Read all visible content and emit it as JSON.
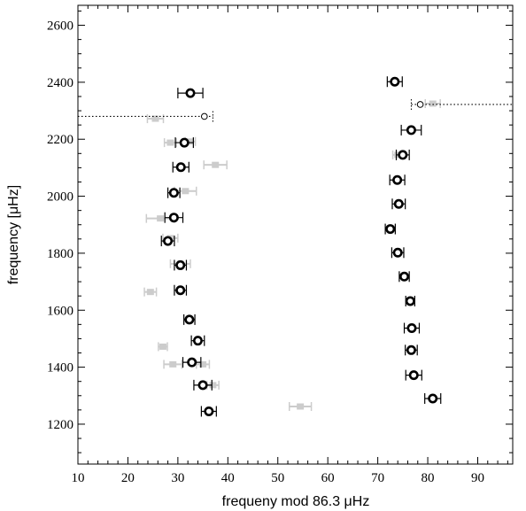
{
  "chart_data": {
    "type": "scatter",
    "xlabel": "frequeny mod 86.3 μHz",
    "ylabel": "frequency [μHz]",
    "xlim": [
      10,
      97
    ],
    "ylim": [
      1060,
      2670
    ],
    "x_ticks": [
      10,
      20,
      30,
      40,
      50,
      60,
      70,
      80,
      90
    ],
    "y_ticks": [
      1200,
      1400,
      1600,
      1800,
      2000,
      2200,
      2400,
      2600
    ],
    "grid": false,
    "series": [
      {
        "style": "light-gray-squares",
        "color": "#cccccc",
        "points": [
          {
            "x": 25.5,
            "y": 2272,
            "xerr": 1.6
          },
          {
            "x": 28.5,
            "y": 2188,
            "xerr": 1.2
          },
          {
            "x": 32.5,
            "y": 2192,
            "xerr": 1.0
          },
          {
            "x": 37.5,
            "y": 2110,
            "xerr": 2.3
          },
          {
            "x": 31.5,
            "y": 2018,
            "xerr": 2.2
          },
          {
            "x": 26.5,
            "y": 1922,
            "xerr": 2.8
          },
          {
            "x": 28.5,
            "y": 1853,
            "xerr": 1.5
          },
          {
            "x": 30.5,
            "y": 1763,
            "xerr": 2.0
          },
          {
            "x": 24.5,
            "y": 1664,
            "xerr": 1.2
          },
          {
            "x": 27.0,
            "y": 1472,
            "xerr": 0.9
          },
          {
            "x": 29.0,
            "y": 1410,
            "xerr": 1.8
          },
          {
            "x": 35.0,
            "y": 1410,
            "xerr": 1.3
          },
          {
            "x": 37.0,
            "y": 1337,
            "xerr": 1.2
          },
          {
            "x": 54.5,
            "y": 1262,
            "xerr": 2.2
          },
          {
            "x": 74.0,
            "y": 2145,
            "xerr": 1.0
          },
          {
            "x": 81.0,
            "y": 2325,
            "xerr": 1.5
          }
        ]
      },
      {
        "style": "black-circles",
        "color": "#000000",
        "points": [
          {
            "x": 36.2,
            "y": 1245,
            "xerr": 1.5
          },
          {
            "x": 35.0,
            "y": 1337,
            "xerr": 1.8
          },
          {
            "x": 32.8,
            "y": 1417,
            "xerr": 1.8
          },
          {
            "x": 34.0,
            "y": 1493,
            "xerr": 1.3
          },
          {
            "x": 32.3,
            "y": 1567,
            "xerr": 1.1
          },
          {
            "x": 30.5,
            "y": 1670,
            "xerr": 1.2
          },
          {
            "x": 30.5,
            "y": 1758,
            "xerr": 1.2
          },
          {
            "x": 28.0,
            "y": 1843,
            "xerr": 1.3
          },
          {
            "x": 29.2,
            "y": 1925,
            "xerr": 1.8
          },
          {
            "x": 29.2,
            "y": 2012,
            "xerr": 1.2
          },
          {
            "x": 30.6,
            "y": 2102,
            "xerr": 1.6
          },
          {
            "x": 31.3,
            "y": 2188,
            "xerr": 1.8
          },
          {
            "x": 32.5,
            "y": 2362,
            "xerr": 2.5
          },
          {
            "x": 81.0,
            "y": 1290,
            "xerr": 1.6
          },
          {
            "x": 77.2,
            "y": 1372,
            "xerr": 1.6
          },
          {
            "x": 76.7,
            "y": 1460,
            "xerr": 1.2
          },
          {
            "x": 76.8,
            "y": 1537,
            "xerr": 1.5
          },
          {
            "x": 76.5,
            "y": 1632,
            "xerr": 0.9
          },
          {
            "x": 75.3,
            "y": 1718,
            "xerr": 1.0
          },
          {
            "x": 74.0,
            "y": 1802,
            "xerr": 1.2
          },
          {
            "x": 72.5,
            "y": 1885,
            "xerr": 1.0
          },
          {
            "x": 74.2,
            "y": 1973,
            "xerr": 1.3
          },
          {
            "x": 73.9,
            "y": 2057,
            "xerr": 1.5
          },
          {
            "x": 75.0,
            "y": 2145,
            "xerr": 1.3
          },
          {
            "x": 76.7,
            "y": 2232,
            "xerr": 2.0
          },
          {
            "x": 73.4,
            "y": 2402,
            "xerr": 1.5
          }
        ]
      },
      {
        "style": "small-open-circles-dotted-errorbars",
        "color": "#000000",
        "points": [
          {
            "x": 35.3,
            "y": 2280,
            "xerr_low": 25.3,
            "xerr_high": 1.7
          },
          {
            "x": 78.5,
            "y": 2322,
            "xerr_low": 1.8,
            "xerr_high": 18.5
          }
        ]
      }
    ]
  }
}
